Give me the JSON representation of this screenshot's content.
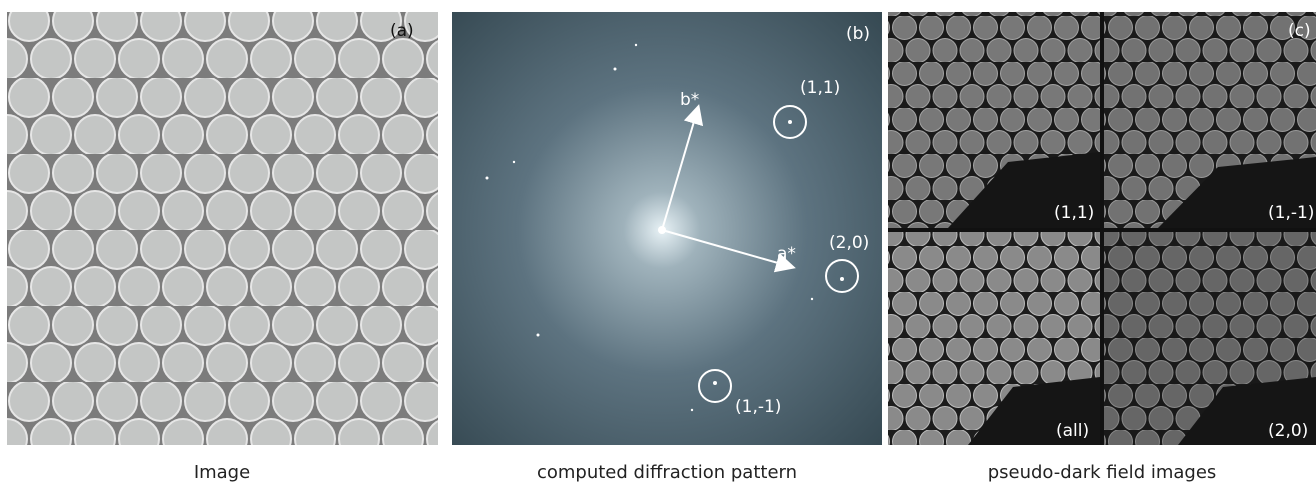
{
  "panels": [
    {
      "label": "(a)",
      "caption": "Image"
    },
    {
      "label": "(b)",
      "caption": "computed diffraction pattern",
      "vectors": [
        "a*",
        "b*"
      ],
      "spots": [
        "(1,1)",
        "(2,0)",
        "(1,-1)"
      ]
    },
    {
      "label": "(c)",
      "caption": "pseudo-dark field images",
      "subpanels": [
        "(1,1)",
        "(1,-1)",
        "(all)",
        "(2,0)"
      ]
    }
  ]
}
